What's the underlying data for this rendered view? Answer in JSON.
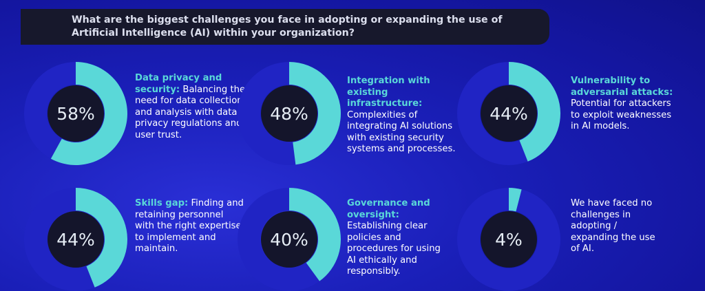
{
  "question": "What are the biggest challenges you face in adopting or expanding the use of\nArtificial Intelligence (AI) within your organization?",
  "colors": {
    "accent": "#5ad8d8",
    "ring_track": "#2024c4",
    "ring_center": "#14152b"
  },
  "chart_data": {
    "type": "donut",
    "unit": "%",
    "items": [
      {
        "value": 58,
        "label": "58%",
        "heading": "Data privacy and security:",
        "text": " Balancing the need for data collection and analysis with data privacy regulations and user trust."
      },
      {
        "value": 48,
        "label": "48%",
        "heading": "Integration with existing infrastructure:",
        "text": " Complexities of integrating AI solutions with existing security systems and processes."
      },
      {
        "value": 44,
        "label": "44%",
        "heading": "Vulnerability to adversarial attacks:",
        "text": " Potential for attackers to exploit weaknesses in AI models."
      },
      {
        "value": 44,
        "label": "44%",
        "heading": "Skills gap:",
        "text": " Finding and retaining personnel with the right expertise to implement and maintain."
      },
      {
        "value": 40,
        "label": "40%",
        "heading": "Governance and oversight:",
        "text": " Establishing clear policies and procedures for using AI ethically and responsibly."
      },
      {
        "value": 4,
        "label": "4%",
        "heading": "",
        "text": "We have faced no challenges in adopting / expanding the use of AI."
      }
    ]
  }
}
